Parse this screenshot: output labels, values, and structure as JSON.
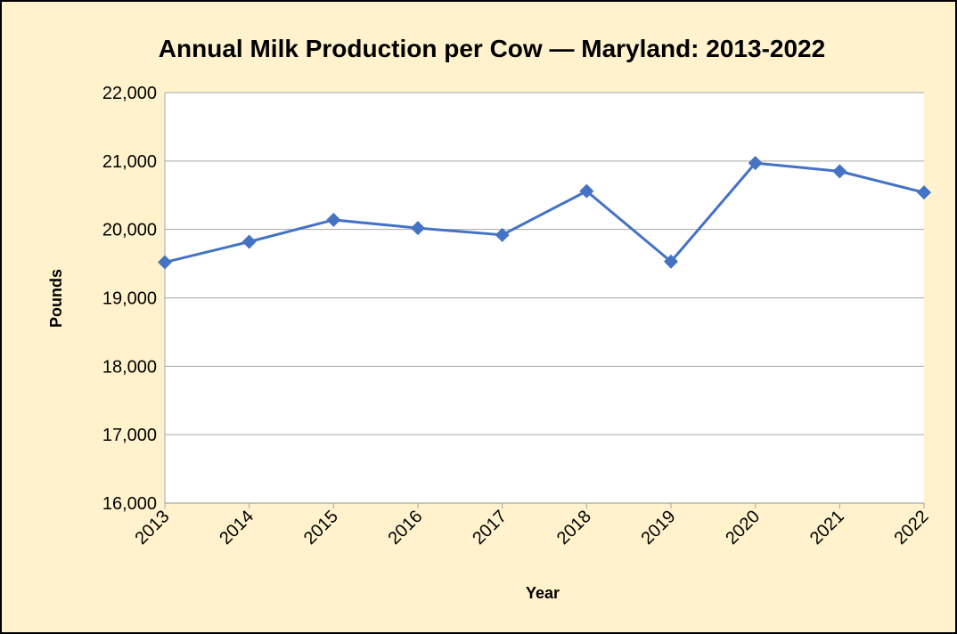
{
  "chart_data": {
    "type": "line",
    "title": "Annual Milk Production per Cow — Maryland: 2013-2022",
    "xlabel": "Year",
    "ylabel": "Pounds",
    "categories": [
      "2013",
      "2014",
      "2015",
      "2016",
      "2017",
      "2018",
      "2019",
      "2020",
      "2021",
      "2022"
    ],
    "series": [
      {
        "values": [
          19520,
          19820,
          20140,
          20020,
          19920,
          20560,
          19530,
          20970,
          20850,
          20540
        ]
      }
    ],
    "ylim": [
      16000,
      22000
    ],
    "yticks": [
      16000,
      17000,
      18000,
      19000,
      20000,
      21000,
      22000
    ],
    "ytick_labels": [
      "16,000",
      "17,000",
      "18,000",
      "19,000",
      "20,000",
      "21,000",
      "22,000"
    ],
    "grid": true,
    "legend": "none",
    "colors": {
      "line": "#4472c4",
      "background": "#fff2cc",
      "plot_area": "#ffffff",
      "gridline": "#a6a6a6"
    }
  }
}
